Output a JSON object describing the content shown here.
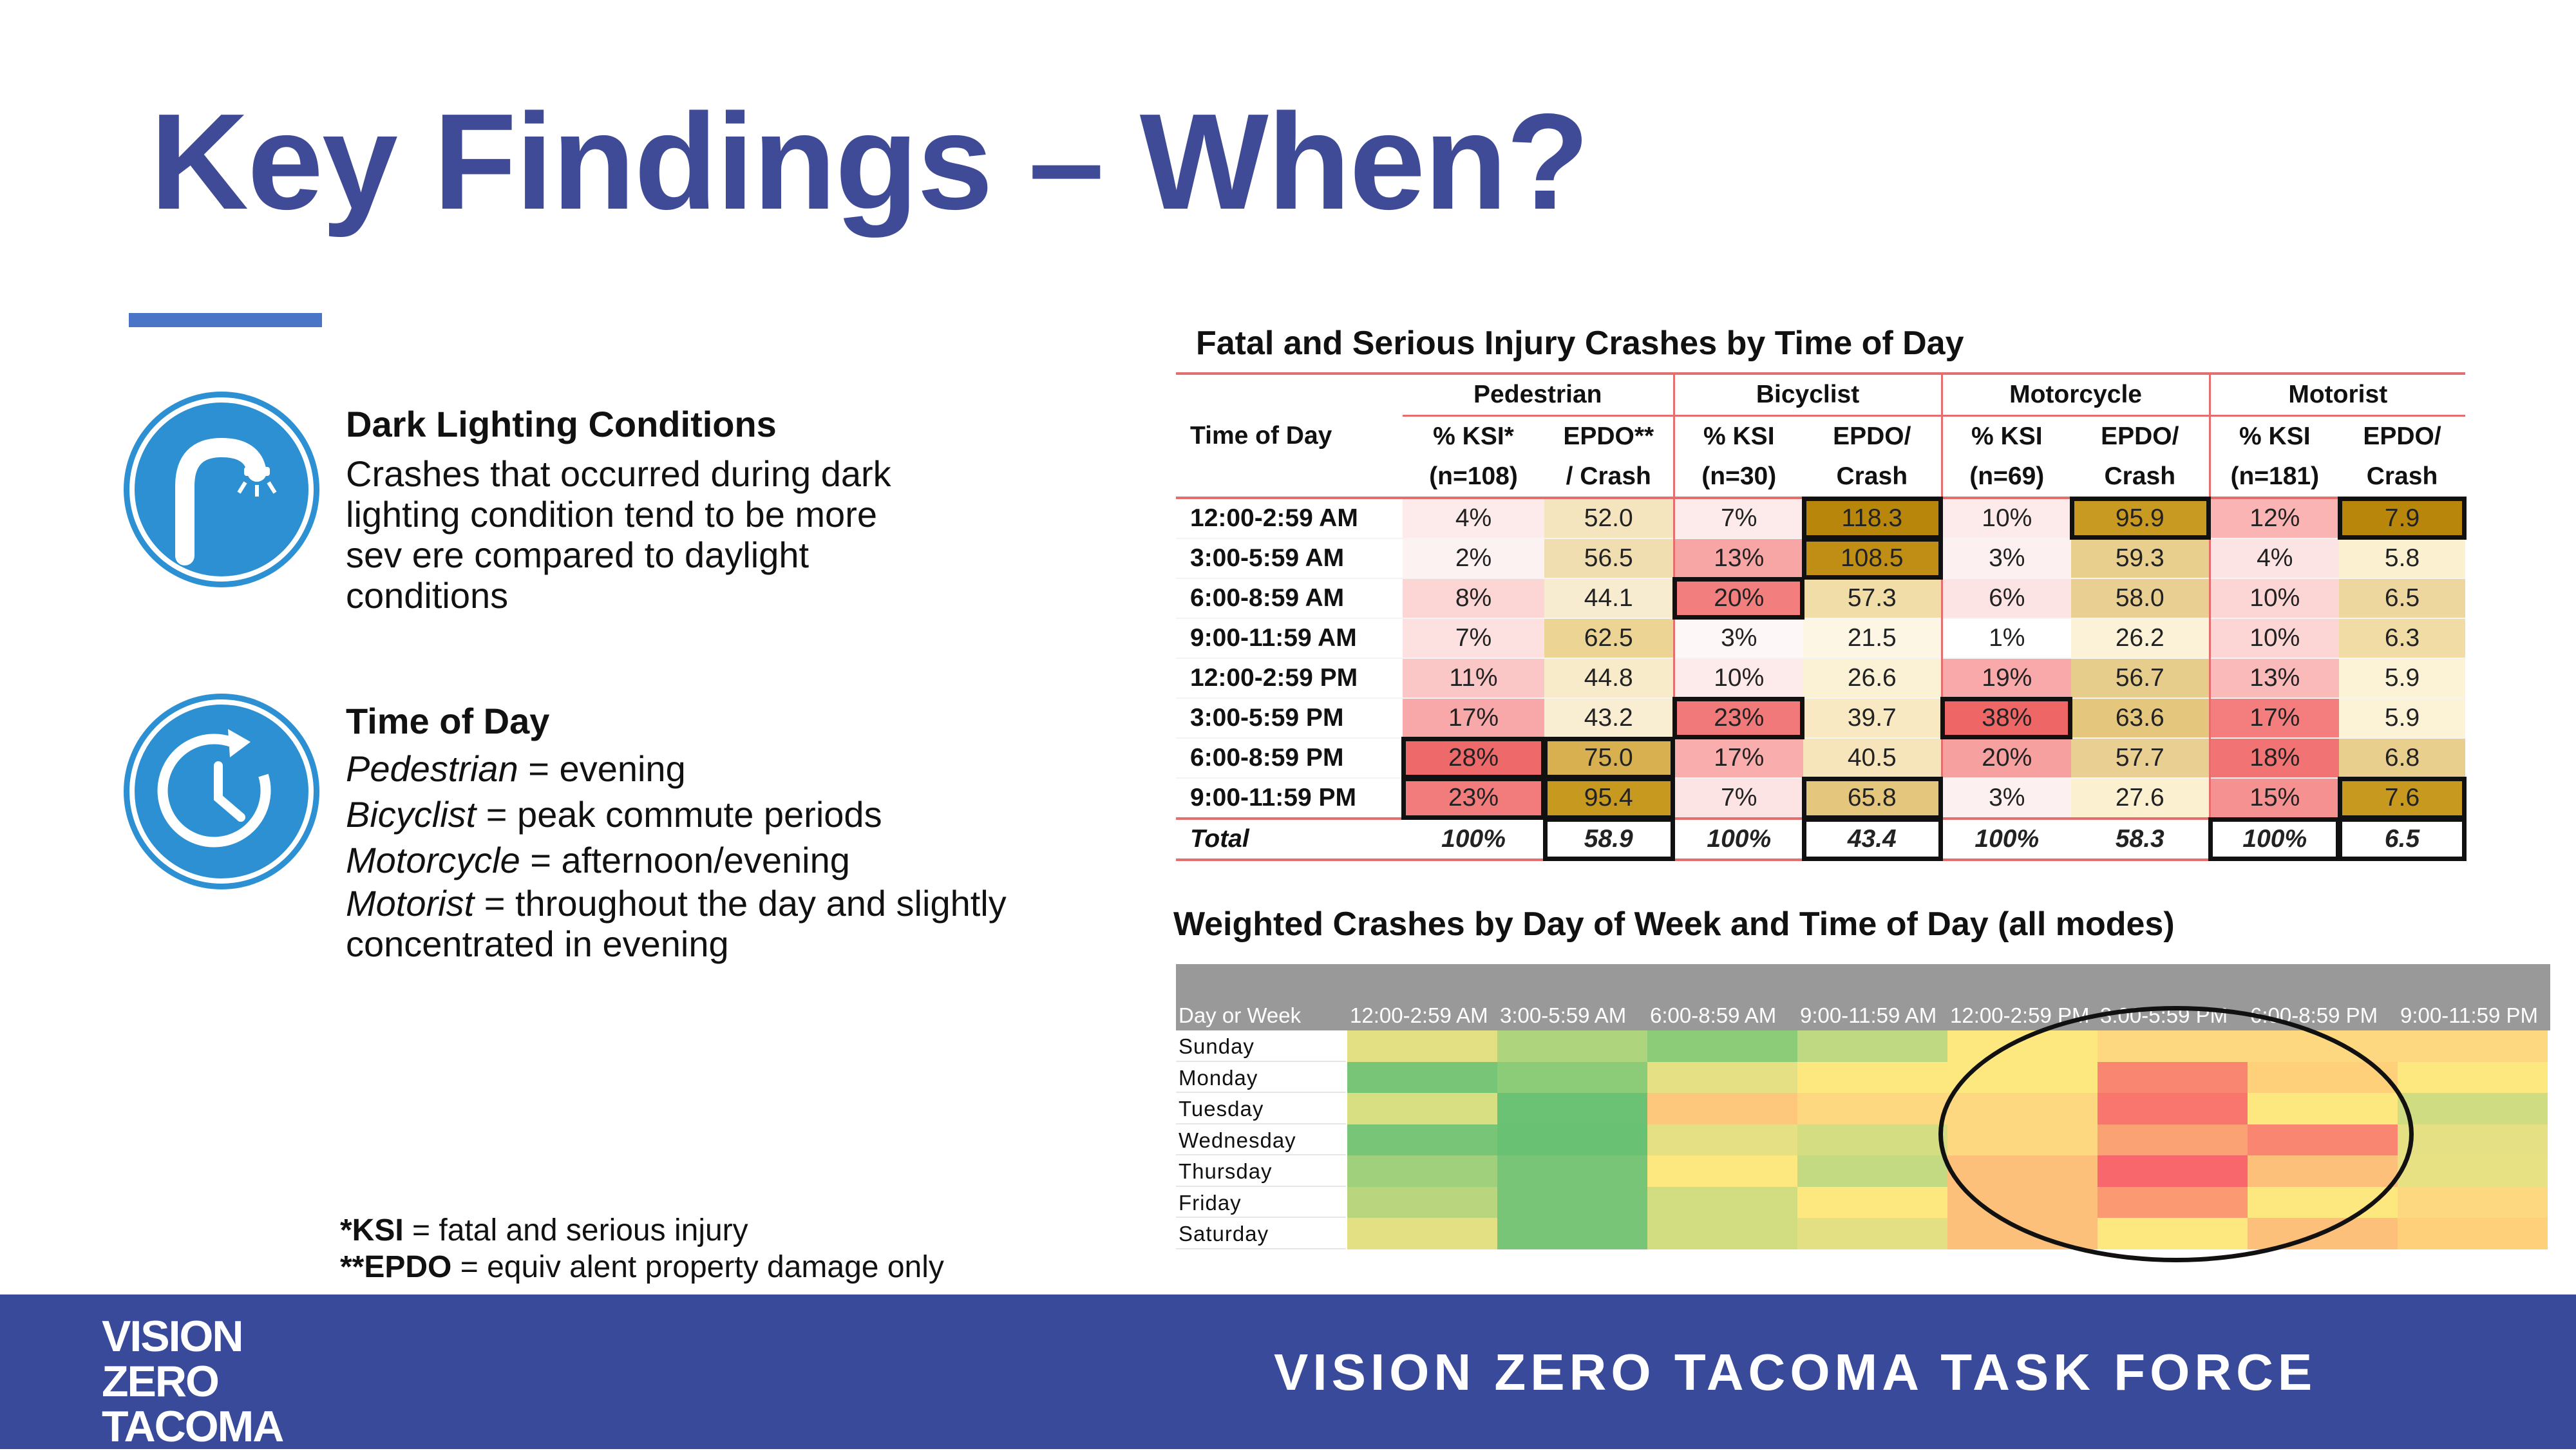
{
  "title": "Key Findings – When?",
  "dark": {
    "heading": "Dark Lighting Conditions",
    "lines": [
      "Crashes that occurred during dark",
      "lighting condition tend to be more",
      "sev ere compared to daylight",
      "conditions"
    ]
  },
  "tod": {
    "heading": "Time of Day",
    "items": [
      {
        "mode": "Pedestrian",
        "text": " = evening"
      },
      {
        "mode": "Bicyclist",
        "text": " = peak commute  periods"
      },
      {
        "mode": "Motorcycle",
        "text": " = afternoon/evening"
      },
      {
        "mode": "Motorist",
        "text": " = throughout  the day and slightly"
      }
    ],
    "last_line": "concentrated in evening"
  },
  "footnotes": {
    "ksi_abbr": "*KSI",
    "ksi_def": " = fatal and serious injury",
    "epdo_abbr": "**EPDO",
    "epdo_def": " = equiv alent property damage only"
  },
  "ksi_table": {
    "title": "Fatal and Serious Injury Crashes by Time of Day",
    "row_header": "Time of Day",
    "modes": [
      "Pedestrian",
      "Bicyclist",
      "Motorcycle",
      "Motorist"
    ],
    "sub1": [
      "% KSI*",
      "EPDO**",
      "% KSI",
      "EPDO/",
      "% KSI",
      "EPDO/",
      "% KSI",
      "EPDO/"
    ],
    "sub2": [
      "(n=108)",
      "/ Crash",
      "(n=30)",
      "Crash",
      "(n=69)",
      "Crash",
      "(n=181)",
      "Crash"
    ],
    "rows": [
      {
        "label": "12:00-2:59  AM",
        "values": [
          "4%",
          "52.0",
          "7%",
          "118.3",
          "10%",
          "95.9",
          "12%",
          "7.9"
        ]
      },
      {
        "label": "3:00-5:59  AM",
        "values": [
          "2%",
          "56.5",
          "13%",
          "108.5",
          "3%",
          "59.3",
          "4%",
          "5.8"
        ]
      },
      {
        "label": "6:00-8:59  AM",
        "values": [
          "8%",
          "44.1",
          "20%",
          "57.3",
          "6%",
          "58.0",
          "10%",
          "6.5"
        ]
      },
      {
        "label": "9:00-11:59  AM",
        "values": [
          "7%",
          "62.5",
          "3%",
          "21.5",
          "1%",
          "26.2",
          "10%",
          "6.3"
        ]
      },
      {
        "label": "12:00-2:59  PM",
        "values": [
          "11%",
          "44.8",
          "10%",
          "26.6",
          "19%",
          "56.7",
          "13%",
          "5.9"
        ]
      },
      {
        "label": "3:00-5:59  PM",
        "values": [
          "17%",
          "43.2",
          "23%",
          "39.7",
          "38%",
          "63.6",
          "17%",
          "5.9"
        ]
      },
      {
        "label": "6:00-8:59  PM",
        "values": [
          "28%",
          "75.0",
          "17%",
          "40.5",
          "20%",
          "57.7",
          "18%",
          "6.8"
        ]
      },
      {
        "label": "9:00-11:59  PM",
        "values": [
          "23%",
          "95.4",
          "7%",
          "65.8",
          "3%",
          "27.6",
          "15%",
          "7.6"
        ]
      }
    ],
    "total": {
      "label": "Total",
      "values": [
        "100%",
        "58.9",
        "100%",
        "43.4",
        "100%",
        "58.3",
        "100%",
        "6.5"
      ]
    },
    "colors": [
      [
        "#fdeaea",
        "#f5e5bf",
        "#fdeaea",
        "#b8860b",
        "#fdeaea",
        "#c99a22",
        "#fbb4b4",
        "#b8860b"
      ],
      [
        "#fdf2f2",
        "#f1deb0",
        "#f8a5a5",
        "#c08e14",
        "#fdf0f0",
        "#e8cf8e",
        "#fde4e4",
        "#fbf0cf"
      ],
      [
        "#fcd5d5",
        "#f8ecd0",
        "#f27e7e",
        "#f0dda8",
        "#fde4e4",
        "#e9d092",
        "#fcd5d5",
        "#edd79e"
      ],
      [
        "#fde0e0",
        "#ecd495",
        "#fef7f7",
        "#fdf6e4",
        "#ffffff",
        "#fcf2d8",
        "#fcd5d5",
        "#f0dca4"
      ],
      [
        "#fbc6c6",
        "#f7ebca",
        "#fdeaea",
        "#fbf1d4",
        "#f9a9a9",
        "#e7cd8c",
        "#fbbaba",
        "#fcf2d6"
      ],
      [
        "#f8a8a8",
        "#f9eed2",
        "#f27979",
        "#f8e9c2",
        "#ef6666",
        "#e4c67d",
        "#f47e7e",
        "#fcf2d6"
      ],
      [
        "#ee6969",
        "#d9b050",
        "#f9adad",
        "#f6e5bb",
        "#f7a0a0",
        "#e9d092",
        "#f27373",
        "#e8cf8e"
      ],
      [
        "#f27c7c",
        "#c8991f",
        "#fde4e4",
        "#e4c67d",
        "#fdf0f0",
        "#fbf0cf",
        "#f69191",
        "#c8991f"
      ]
    ],
    "highlights": [
      [
        0,
        3
      ],
      [
        0,
        5
      ],
      [
        0,
        7
      ],
      [
        1,
        3
      ],
      [
        2,
        2
      ],
      [
        5,
        2
      ],
      [
        5,
        4
      ],
      [
        6,
        0
      ],
      [
        6,
        1
      ],
      [
        7,
        0
      ],
      [
        7,
        1
      ],
      [
        7,
        3
      ],
      [
        7,
        7
      ]
    ]
  },
  "heatmap": {
    "title": "Weighted Crashes by Day of Week and Time of Day (all modes)",
    "corner_label": "Day or Week",
    "time_headers": [
      "12:00-2:59 AM",
      "3:00-5:59 AM",
      "6:00-8:59 AM",
      "9:00-11:59 AM",
      "12:00-2:59 PM",
      "3:00-5:59 PM",
      "6:00-8:59 PM",
      "9:00-11:59 PM"
    ],
    "days": [
      "Sunday",
      "Monday",
      "Tuesday",
      "Wednesday",
      "Thursday",
      "Friday",
      "Saturday"
    ],
    "colors": [
      [
        "#e2e083",
        "#aed47e",
        "#8ccc78",
        "#bfd882",
        "#fde880",
        "#fdd880",
        "#fdd880",
        "#fdd880"
      ],
      [
        "#79c577",
        "#8ccc78",
        "#e5e083",
        "#fde880",
        "#fde880",
        "#f98670",
        "#fdd079",
        "#fde880"
      ],
      [
        "#d8df82",
        "#6bc274",
        "#fdc87c",
        "#fdd880",
        "#fdd880",
        "#f8766d",
        "#fde880",
        "#d0dc82"
      ],
      [
        "#79c577",
        "#69c274",
        "#e5e083",
        "#d4dd82",
        "#fdd880",
        "#fba274",
        "#f98670",
        "#e5e083"
      ],
      [
        "#a0d07b",
        "#79c577",
        "#fde880",
        "#c3d982",
        "#fdc07a",
        "#f8676b",
        "#fdc07a",
        "#e8e183"
      ],
      [
        "#b9d67f",
        "#79c577",
        "#d2dd82",
        "#fde880",
        "#fdc07a",
        "#fb9a72",
        "#fde880",
        "#fdd880"
      ],
      [
        "#e2e083",
        "#79c577",
        "#d2dd82",
        "#e2e083",
        "#fdc07a",
        "#fde880",
        "#fdc07a",
        "#fdd079"
      ]
    ]
  },
  "footer": {
    "logo_lines": [
      "VISION",
      "ZERO",
      "TACOMA"
    ],
    "text": "VISION ZERO TACOMA TASK FORCE"
  }
}
